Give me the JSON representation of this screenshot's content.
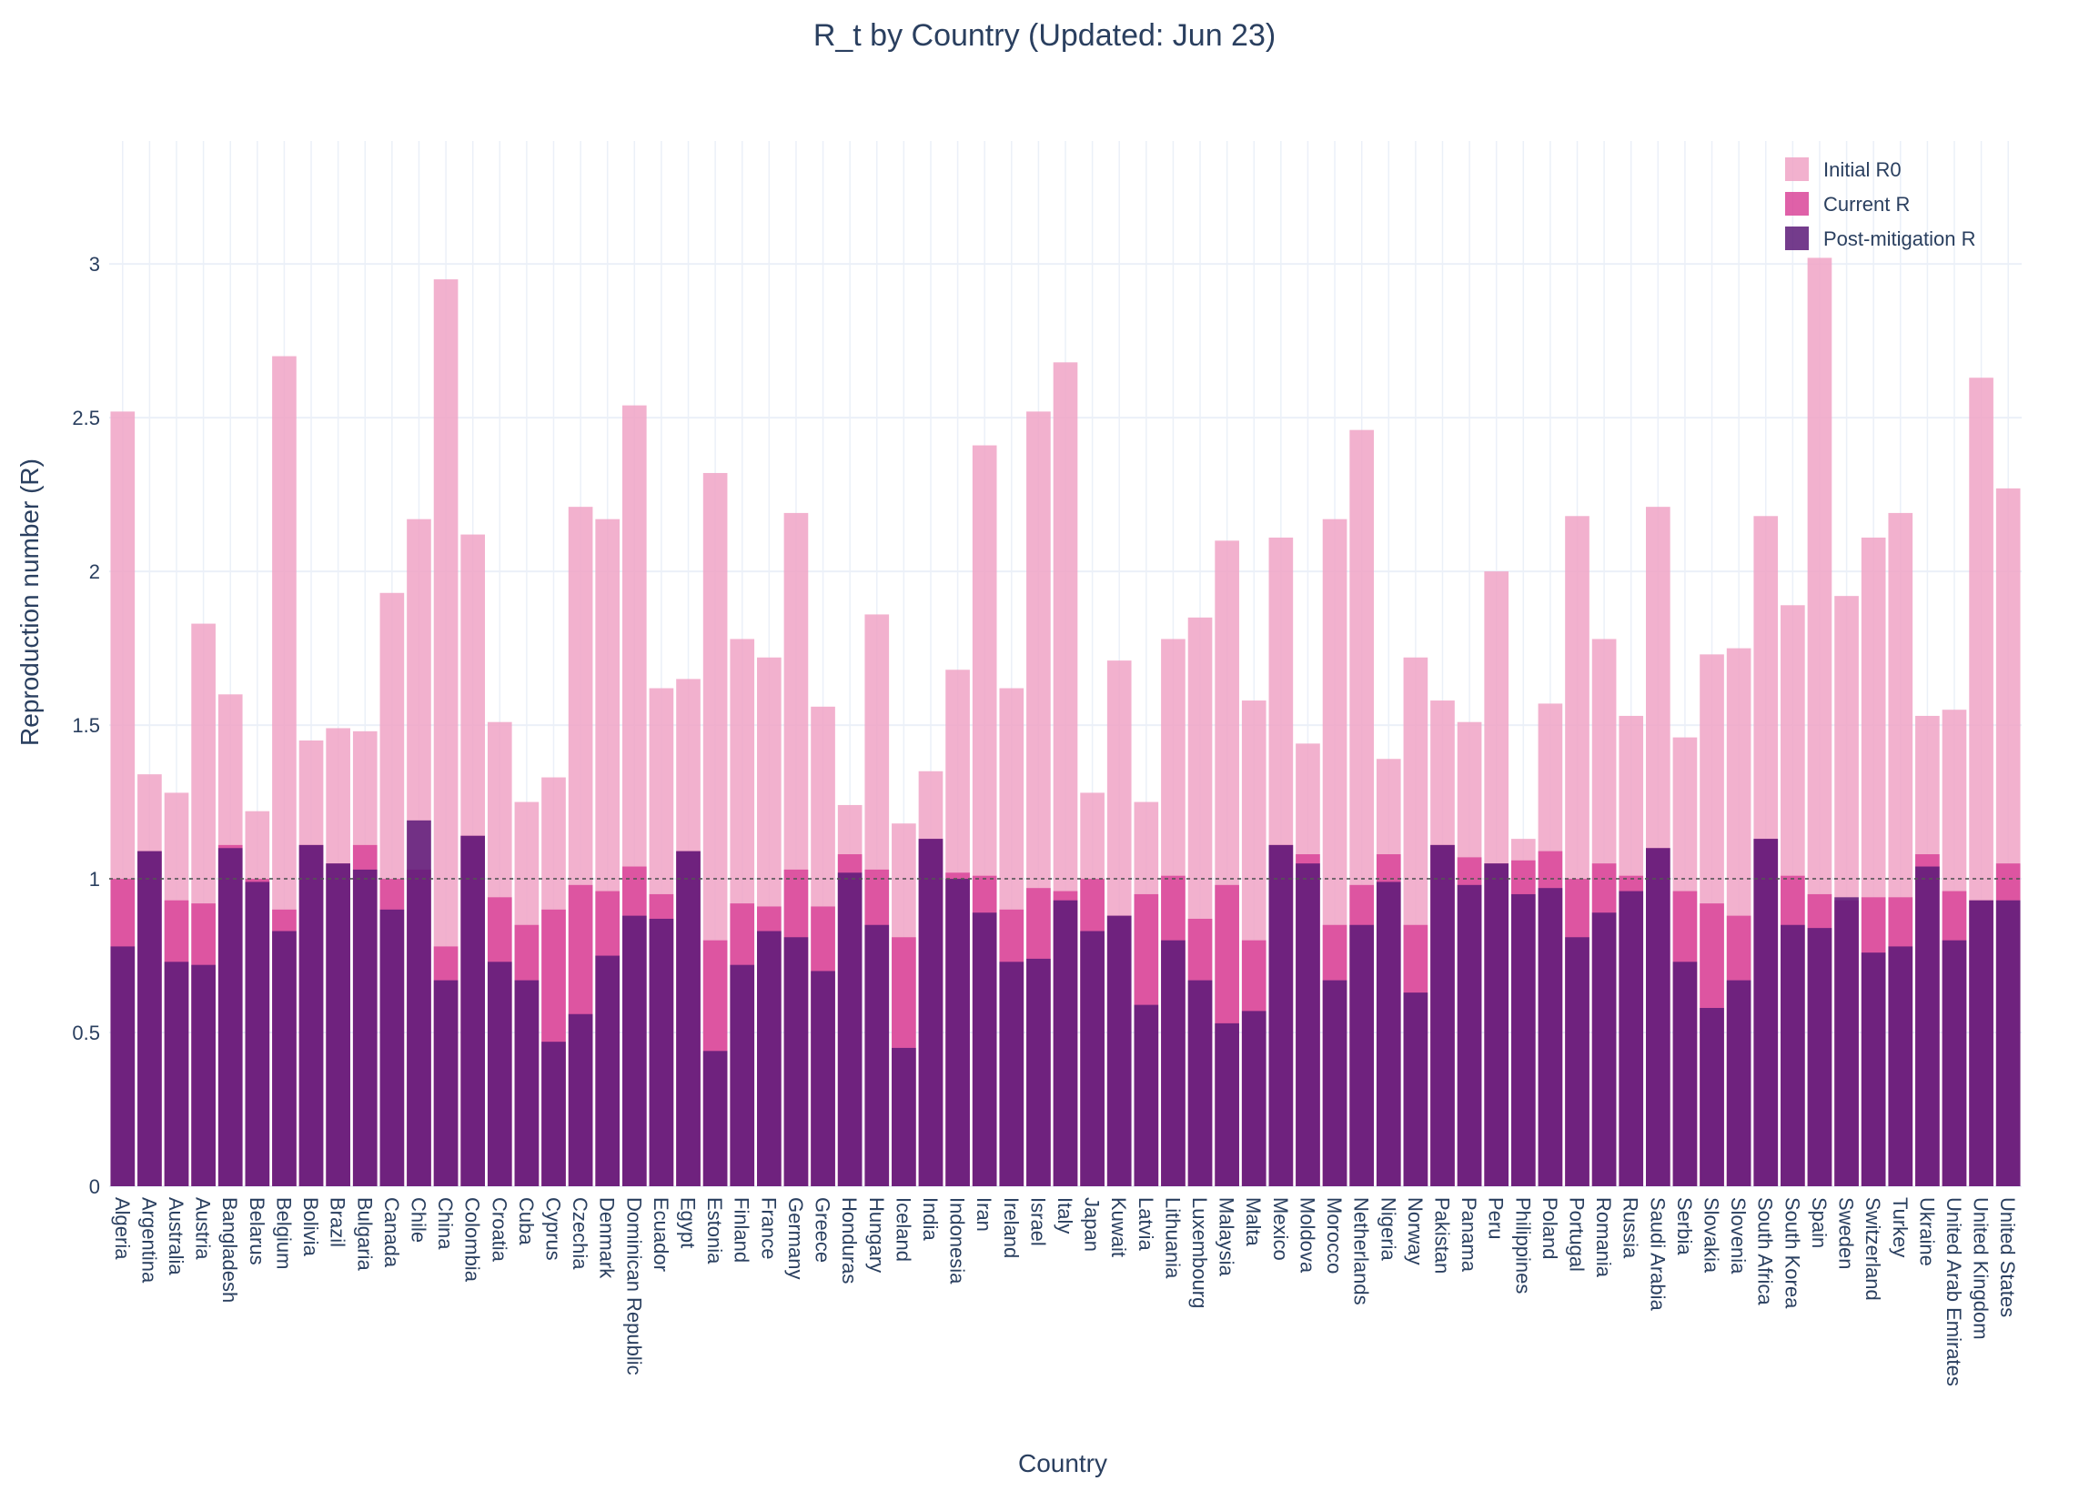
{
  "chart_data": {
    "type": "bar",
    "title": "R_t by Country (Updated: Jun 23)",
    "xlabel": "Country",
    "ylabel": "Reproduction number (R)",
    "ylim": [
      0,
      3.4
    ],
    "yticks": [
      0,
      0.5,
      1,
      1.5,
      2,
      2.5,
      3
    ],
    "reference_line": 1,
    "grid": true,
    "barmode": "overlay",
    "legend_position": "top-right",
    "categories": [
      "Algeria",
      "Argentina",
      "Australia",
      "Austria",
      "Bangladesh",
      "Belarus",
      "Belgium",
      "Bolivia",
      "Brazil",
      "Bulgaria",
      "Canada",
      "Chile",
      "China",
      "Colombia",
      "Croatia",
      "Cuba",
      "Cyprus",
      "Czechia",
      "Denmark",
      "Dominican Republic",
      "Ecuador",
      "Egypt",
      "Estonia",
      "Finland",
      "France",
      "Germany",
      "Greece",
      "Honduras",
      "Hungary",
      "Iceland",
      "India",
      "Indonesia",
      "Iran",
      "Ireland",
      "Israel",
      "Italy",
      "Japan",
      "Kuwait",
      "Latvia",
      "Lithuania",
      "Luxembourg",
      "Malaysia",
      "Malta",
      "Mexico",
      "Moldova",
      "Morocco",
      "Netherlands",
      "Nigeria",
      "Norway",
      "Pakistan",
      "Panama",
      "Peru",
      "Philippines",
      "Poland",
      "Portugal",
      "Romania",
      "Russia",
      "Saudi Arabia",
      "Serbia",
      "Slovakia",
      "Slovenia",
      "South Africa",
      "South Korea",
      "Spain",
      "Sweden",
      "Switzerland",
      "Turkey",
      "Ukraine",
      "United Arab Emirates",
      "United Kingdom",
      "United States"
    ],
    "series": [
      {
        "name": "Initial R0",
        "color": "#f0a3c6",
        "values": [
          2.52,
          1.34,
          1.28,
          1.83,
          1.6,
          1.22,
          2.7,
          1.45,
          1.49,
          1.48,
          1.93,
          2.17,
          2.95,
          2.12,
          1.51,
          1.25,
          1.33,
          2.21,
          2.17,
          2.54,
          1.62,
          1.65,
          2.32,
          1.78,
          1.72,
          2.19,
          1.56,
          1.24,
          1.86,
          1.18,
          1.35,
          1.68,
          2.41,
          1.62,
          2.52,
          2.68,
          1.28,
          1.71,
          1.25,
          1.78,
          1.85,
          2.1,
          1.58,
          2.11,
          1.44,
          2.17,
          2.46,
          1.39,
          1.72,
          1.58,
          1.51,
          2.0,
          1.13,
          1.57,
          2.18,
          1.78,
          1.53,
          2.21,
          1.46,
          1.73,
          1.75,
          2.18,
          1.89,
          3.02,
          1.92,
          2.11,
          2.19,
          1.53,
          1.55,
          2.63,
          2.27
        ]
      },
      {
        "name": "Current R",
        "color": "#d94599",
        "values": [
          1.0,
          1.09,
          0.93,
          0.92,
          1.11,
          1.0,
          0.9,
          1.11,
          1.05,
          1.11,
          1.0,
          1.03,
          0.78,
          1.14,
          0.94,
          0.85,
          0.9,
          0.98,
          0.96,
          1.04,
          0.95,
          1.09,
          0.8,
          0.92,
          0.91,
          1.03,
          0.91,
          1.08,
          1.03,
          0.81,
          1.13,
          1.02,
          1.01,
          0.9,
          0.97,
          0.96,
          1.0,
          0.88,
          0.95,
          1.01,
          0.87,
          0.98,
          0.8,
          1.11,
          1.08,
          0.85,
          0.98,
          1.08,
          0.85,
          1.11,
          1.07,
          1.05,
          1.06,
          1.09,
          1.0,
          1.05,
          1.01,
          1.1,
          0.96,
          0.92,
          0.88,
          1.13,
          1.01,
          0.95,
          0.93,
          0.94,
          0.94,
          1.08,
          0.96,
          0.93,
          1.05
        ]
      },
      {
        "name": "Post-mitigation R",
        "color": "#5c1a78",
        "values": [
          0.78,
          1.09,
          0.73,
          0.72,
          1.1,
          0.99,
          0.83,
          1.11,
          1.05,
          1.03,
          0.9,
          1.19,
          0.67,
          1.14,
          0.73,
          0.67,
          0.47,
          0.56,
          0.75,
          0.88,
          0.87,
          1.09,
          0.44,
          0.72,
          0.83,
          0.81,
          0.7,
          1.02,
          0.85,
          0.45,
          1.13,
          1.0,
          0.89,
          0.73,
          0.74,
          0.93,
          0.83,
          0.88,
          0.59,
          0.8,
          0.67,
          0.53,
          0.57,
          1.11,
          1.05,
          0.67,
          0.85,
          0.99,
          0.63,
          1.11,
          0.98,
          1.05,
          0.95,
          0.97,
          0.81,
          0.89,
          0.96,
          1.1,
          0.73,
          0.58,
          0.67,
          1.13,
          0.85,
          0.84,
          0.94,
          0.76,
          0.78,
          1.04,
          0.8,
          0.93,
          0.93
        ]
      }
    ]
  }
}
